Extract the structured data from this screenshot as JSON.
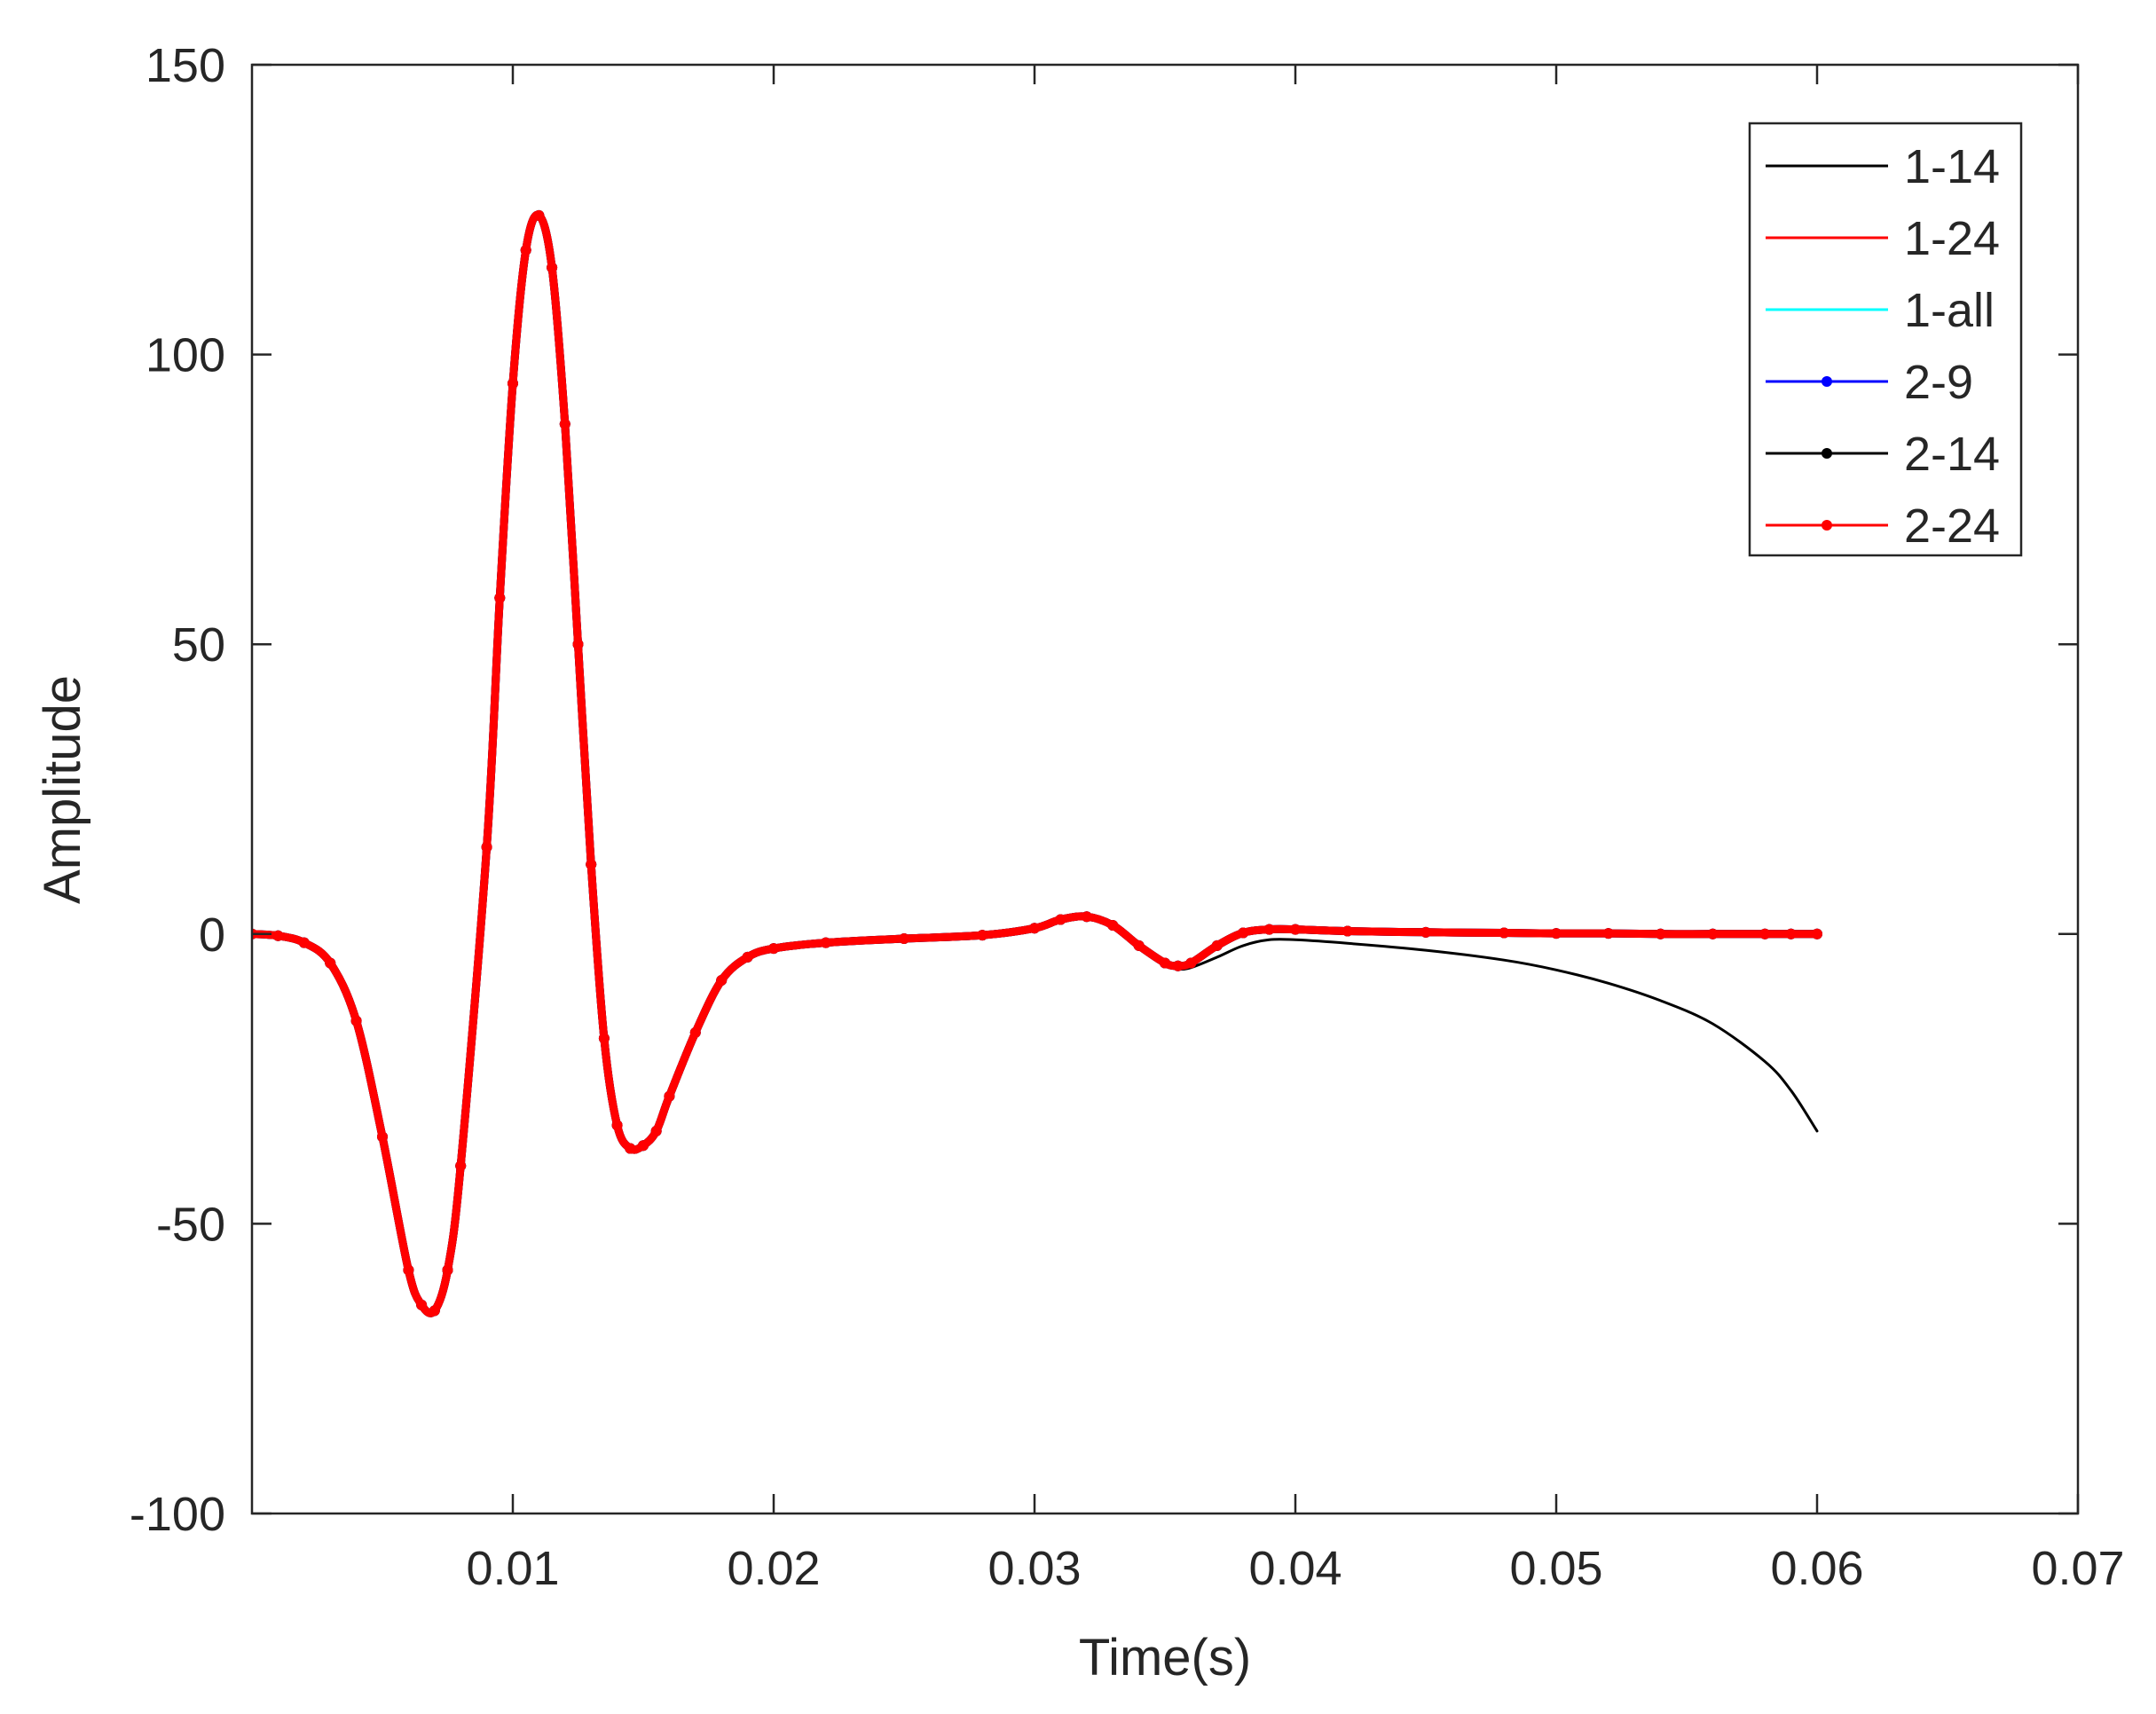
{
  "chart_data": {
    "type": "line",
    "xlabel": "Time(s)",
    "ylabel": "Amplitude",
    "xlim": [
      0,
      0.07
    ],
    "ylim": [
      -100,
      150
    ],
    "xticks": [
      0.01,
      0.02,
      0.03,
      0.04,
      0.05,
      0.06,
      0.07
    ],
    "xtick_labels": [
      "0.01",
      "0.02",
      "0.03",
      "0.04",
      "0.05",
      "0.06",
      "0.07"
    ],
    "yticks": [
      -100,
      -50,
      0,
      50,
      100,
      150
    ],
    "ytick_labels": [
      "-100",
      "-50",
      "0",
      "50",
      "100",
      "150"
    ],
    "grid": false,
    "legend_position": "top-right",
    "x": [
      0,
      0.001,
      0.002,
      0.003,
      0.004,
      0.005,
      0.006,
      0.0065,
      0.007,
      0.0075,
      0.008,
      0.009,
      0.0095,
      0.01,
      0.0105,
      0.011,
      0.0115,
      0.012,
      0.0125,
      0.013,
      0.0135,
      0.014,
      0.0145,
      0.015,
      0.0155,
      0.016,
      0.017,
      0.018,
      0.019,
      0.02,
      0.022,
      0.025,
      0.028,
      0.03,
      0.031,
      0.032,
      0.033,
      0.034,
      0.035,
      0.0355,
      0.036,
      0.037,
      0.038,
      0.039,
      0.04,
      0.042,
      0.045,
      0.048,
      0.05,
      0.052,
      0.054,
      0.056,
      0.058,
      0.059,
      0.06
    ],
    "series": [
      {
        "name": "1-14",
        "color": "#000000",
        "marker": "none",
        "values": [
          0,
          -0.3,
          -1.5,
          -5,
          -15,
          -35,
          -58,
          -64,
          -65,
          -58,
          -40,
          15,
          58,
          95,
          118,
          124,
          115,
          88,
          50,
          12,
          -18,
          -33,
          -37,
          -36.5,
          -34,
          -28,
          -17,
          -8,
          -4,
          -2.5,
          -1.5,
          -0.8,
          -0.2,
          1,
          2.5,
          3,
          1.5,
          -2,
          -5,
          -6,
          -5.8,
          -4,
          -2,
          -1,
          -1,
          -1.6,
          -2.8,
          -4.5,
          -6.2,
          -8.5,
          -11.5,
          -15.5,
          -22,
          -27,
          -34
        ]
      },
      {
        "name": "1-24",
        "color": "#ff0000",
        "marker": "none",
        "values": [
          0,
          -0.3,
          -1.5,
          -5,
          -15,
          -35,
          -58,
          -64,
          -65,
          -58,
          -40,
          15,
          58,
          95,
          118,
          124,
          115,
          88,
          50,
          12,
          -18,
          -33,
          -37,
          -36.5,
          -34,
          -28,
          -17,
          -8,
          -4,
          -2.5,
          -1.5,
          -0.8,
          -0.2,
          1,
          2.5,
          3,
          1.5,
          -2,
          -5,
          -5.5,
          -5,
          -2,
          0.2,
          0.8,
          0.8,
          0.5,
          0.3,
          0.2,
          0.1,
          0.1,
          0,
          0,
          0,
          0,
          0
        ]
      },
      {
        "name": "1-all",
        "color": "#00ffff",
        "marker": "none",
        "values": [
          0,
          -0.3,
          -1.5,
          -5,
          -15,
          -35,
          -58,
          -64,
          -65,
          -58,
          -40,
          15,
          58,
          95,
          118,
          124,
          115,
          88,
          50,
          12,
          -18,
          -33,
          -37,
          -36.5,
          -34,
          -28,
          -17,
          -8,
          -4,
          -2.5,
          -1.5,
          -0.8,
          -0.2,
          1,
          2.5,
          3,
          1.5,
          -2,
          -5,
          -5.5,
          -5,
          -2,
          0.2,
          0.8,
          0.8,
          0.5,
          0.3,
          0.2,
          0.1,
          0.1,
          0,
          0,
          0,
          0,
          0
        ]
      },
      {
        "name": "2-9",
        "color": "#0000ff",
        "marker": "dot",
        "values": [
          0,
          -0.3,
          -1.5,
          -5,
          -15,
          -35,
          -58,
          -64,
          -65,
          -58,
          -40,
          15,
          58,
          95,
          118,
          124,
          115,
          88,
          50,
          12,
          -18,
          -33,
          -37,
          -36.5,
          -34,
          -28,
          -17,
          -8,
          -4,
          -2.5,
          -1.5,
          -0.8,
          -0.2,
          1,
          2.5,
          3,
          1.5,
          -2,
          -5,
          -5.5,
          -5,
          -2,
          0.2,
          0.8,
          0.8,
          0.5,
          0.3,
          0.2,
          0.1,
          0.1,
          0,
          0,
          0,
          0,
          0
        ]
      },
      {
        "name": "2-14",
        "color": "#000000",
        "marker": "dot",
        "values": [
          0,
          -0.3,
          -1.5,
          -5,
          -15,
          -35,
          -58,
          -64,
          -65,
          -58,
          -40,
          15,
          58,
          95,
          118,
          124,
          115,
          88,
          50,
          12,
          -18,
          -33,
          -37,
          -36.5,
          -34,
          -28,
          -17,
          -8,
          -4,
          -2.5,
          -1.5,
          -0.8,
          -0.2,
          1,
          2.5,
          3,
          1.5,
          -2,
          -5,
          -5.5,
          -5,
          -2,
          0.2,
          0.8,
          0.8,
          0.5,
          0.3,
          0.2,
          0.1,
          0.1,
          0,
          0,
          0,
          0,
          0
        ]
      },
      {
        "name": "2-24",
        "color": "#ff0000",
        "marker": "dot",
        "values": [
          0,
          -0.3,
          -1.5,
          -5,
          -15,
          -35,
          -58,
          -64,
          -65,
          -58,
          -40,
          15,
          58,
          95,
          118,
          124,
          115,
          88,
          50,
          12,
          -18,
          -33,
          -37,
          -36.5,
          -34,
          -28,
          -17,
          -8,
          -4,
          -2.5,
          -1.5,
          -0.8,
          -0.2,
          1,
          2.5,
          3,
          1.5,
          -2,
          -5,
          -5.5,
          -5,
          -2,
          0.2,
          0.8,
          0.8,
          0.5,
          0.3,
          0.2,
          0.1,
          0.1,
          0,
          0,
          0,
          0,
          0
        ]
      }
    ]
  }
}
